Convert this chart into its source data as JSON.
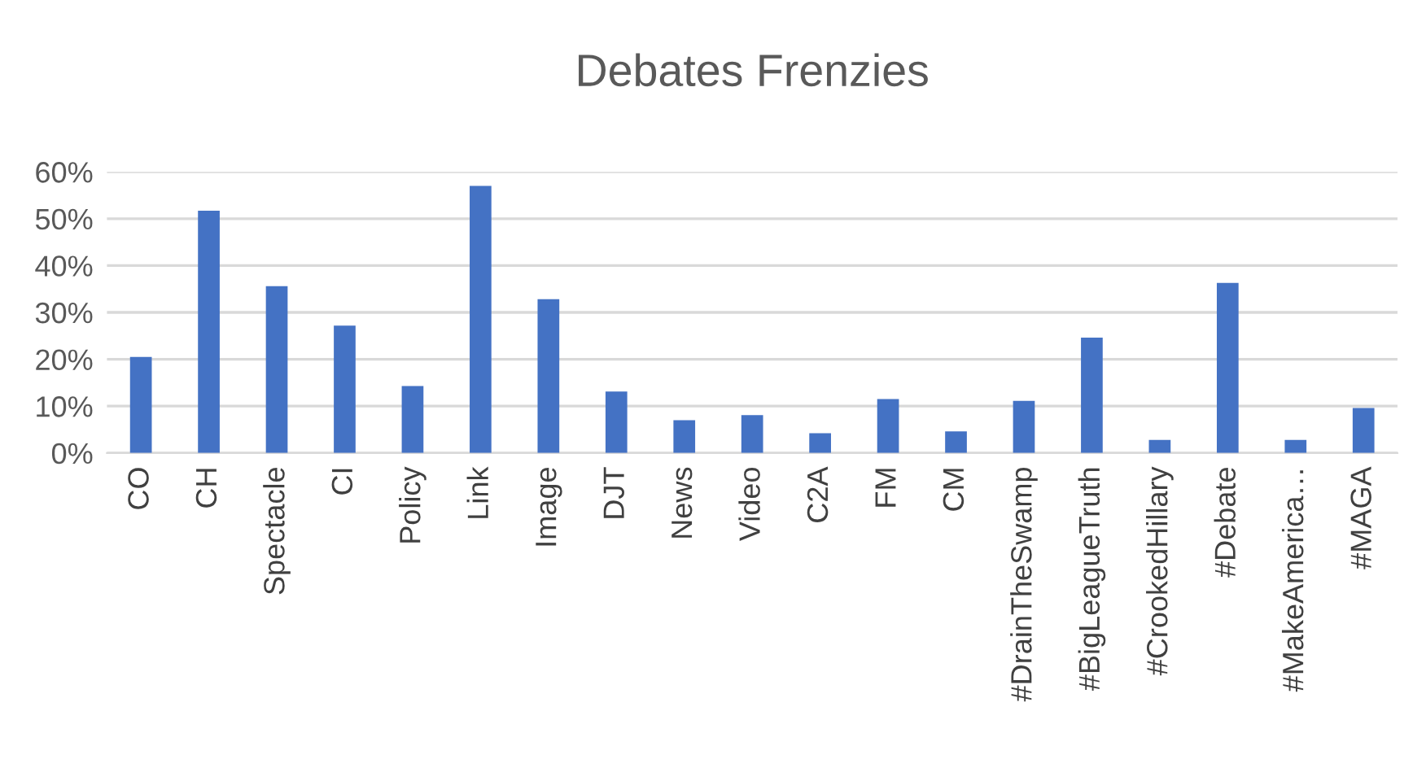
{
  "chart_data": {
    "type": "bar",
    "title": "Debates Frenzies",
    "categories": [
      "CO",
      "CH",
      "Spectacle",
      "CI",
      "Policy",
      "Link",
      "Image",
      "DJT",
      "News",
      "Video",
      "C2A",
      "FM",
      "CM",
      "#DrainTheSwamp",
      "#BigLeagueTruth",
      "#CrookedHillary",
      "#Debate",
      "#MakeAmerica…",
      "#MAGA"
    ],
    "values": [
      20.5,
      51.7,
      35.6,
      27.2,
      14.3,
      57.0,
      32.8,
      13.1,
      7.0,
      8.1,
      4.2,
      11.5,
      4.6,
      11.1,
      24.6,
      2.8,
      36.3,
      2.8,
      9.6
    ],
    "color": "#4472c4",
    "ylim": [
      0,
      60
    ],
    "yticks": [
      {
        "value": 0,
        "label": "0%"
      },
      {
        "value": 10,
        "label": "10%"
      },
      {
        "value": 20,
        "label": "20%"
      },
      {
        "value": 30,
        "label": "30%"
      },
      {
        "value": 40,
        "label": "40%"
      },
      {
        "value": 50,
        "label": "50%"
      },
      {
        "value": 60,
        "label": "60%"
      }
    ],
    "grid": "y",
    "legend": false
  }
}
